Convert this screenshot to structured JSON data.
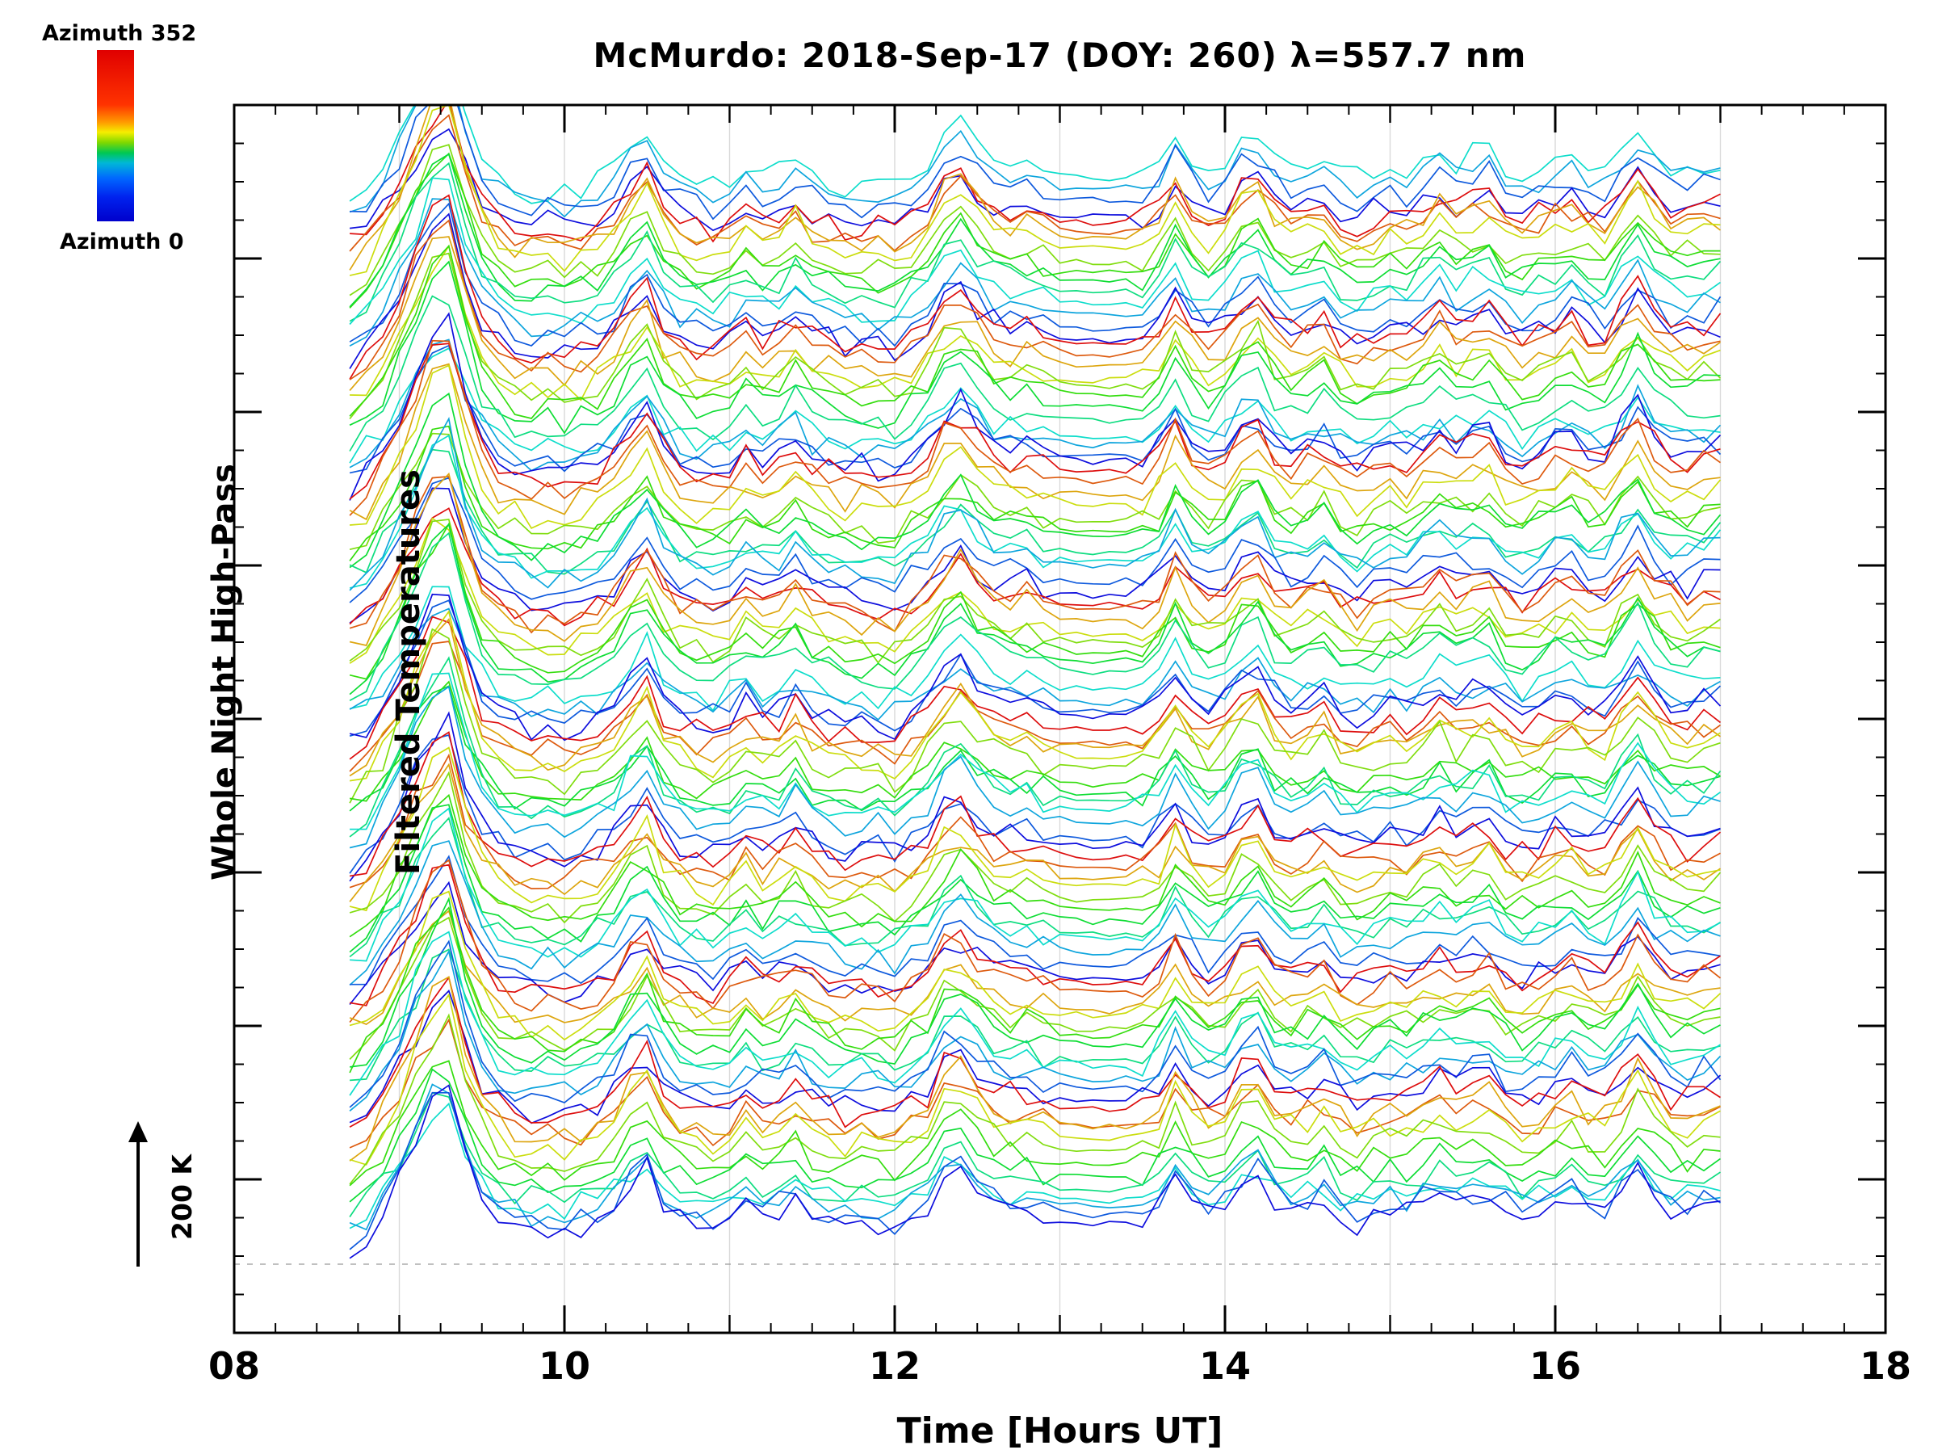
{
  "chart_data": {
    "type": "line",
    "title": "McMurdo: 2018-Sep-17 (DOY: 260) λ=557.7 nm",
    "xlabel": "Time [Hours UT]",
    "ylabel_lines": [
      "Whole Night High-Pass",
      "Filtered Temperatures"
    ],
    "scale_arrow_label": "200 K",
    "x_range": [
      8,
      18
    ],
    "x_tick_labels": [
      "08",
      "10",
      "12",
      "14",
      "16",
      "18"
    ],
    "x_tick_values": [
      8,
      10,
      12,
      14,
      16,
      18
    ],
    "grid_hours": [
      9,
      10,
      11,
      12,
      13,
      14,
      15,
      16,
      17
    ],
    "x_start": 8.7,
    "x_step": 0.1,
    "n_points": 84,
    "base_waveform": [
      0.02,
      0.1,
      0.25,
      0.45,
      0.7,
      0.92,
      1.0,
      0.6,
      0.32,
      0.2,
      0.14,
      0.1,
      0.12,
      0.1,
      0.14,
      0.18,
      0.26,
      0.42,
      0.52,
      0.3,
      0.2,
      0.16,
      0.14,
      0.18,
      0.28,
      0.2,
      0.24,
      0.34,
      0.22,
      0.18,
      0.14,
      0.16,
      0.14,
      0.12,
      0.2,
      0.28,
      0.46,
      0.52,
      0.38,
      0.3,
      0.26,
      0.28,
      0.22,
      0.2,
      0.19,
      0.18,
      0.18,
      0.19,
      0.2,
      0.28,
      0.48,
      0.3,
      0.22,
      0.28,
      0.44,
      0.48,
      0.3,
      0.24,
      0.28,
      0.34,
      0.22,
      0.18,
      0.22,
      0.26,
      0.24,
      0.3,
      0.38,
      0.3,
      0.34,
      0.36,
      0.24,
      0.2,
      0.24,
      0.3,
      0.34,
      0.26,
      0.24,
      0.38,
      0.52,
      0.36,
      0.26,
      0.24,
      0.28,
      0.3
    ],
    "flat_region": [
      12.9,
      13.5
    ],
    "noise_seed": 42,
    "traces": {
      "azimuth_min": 0,
      "azimuth_max": 352,
      "lead_azimuths": [
        96,
        64,
        32,
        0
      ],
      "azimuth_cycle": [
        352,
        320,
        288,
        256,
        224,
        192,
        160,
        128,
        96,
        64,
        32,
        0
      ],
      "n_cycles": 8,
      "n_traces": 100
    },
    "colorbar": {
      "top_label": "Azimuth 352",
      "bottom_label": "Azimuth 0",
      "stops": [
        {
          "color": "#e00000",
          "pos": 0
        },
        {
          "color": "#ff3300",
          "pos": 32
        },
        {
          "color": "#ff9900",
          "pos": 42
        },
        {
          "color": "#f5ee00",
          "pos": 48
        },
        {
          "color": "#7fd800",
          "pos": 54
        },
        {
          "color": "#00c853",
          "pos": 60
        },
        {
          "color": "#00b7d8",
          "pos": 66
        },
        {
          "color": "#0066ff",
          "pos": 75
        },
        {
          "color": "#0022ee",
          "pos": 86
        },
        {
          "color": "#0000cc",
          "pos": 100
        }
      ]
    },
    "has_dashed_baseline": true
  }
}
